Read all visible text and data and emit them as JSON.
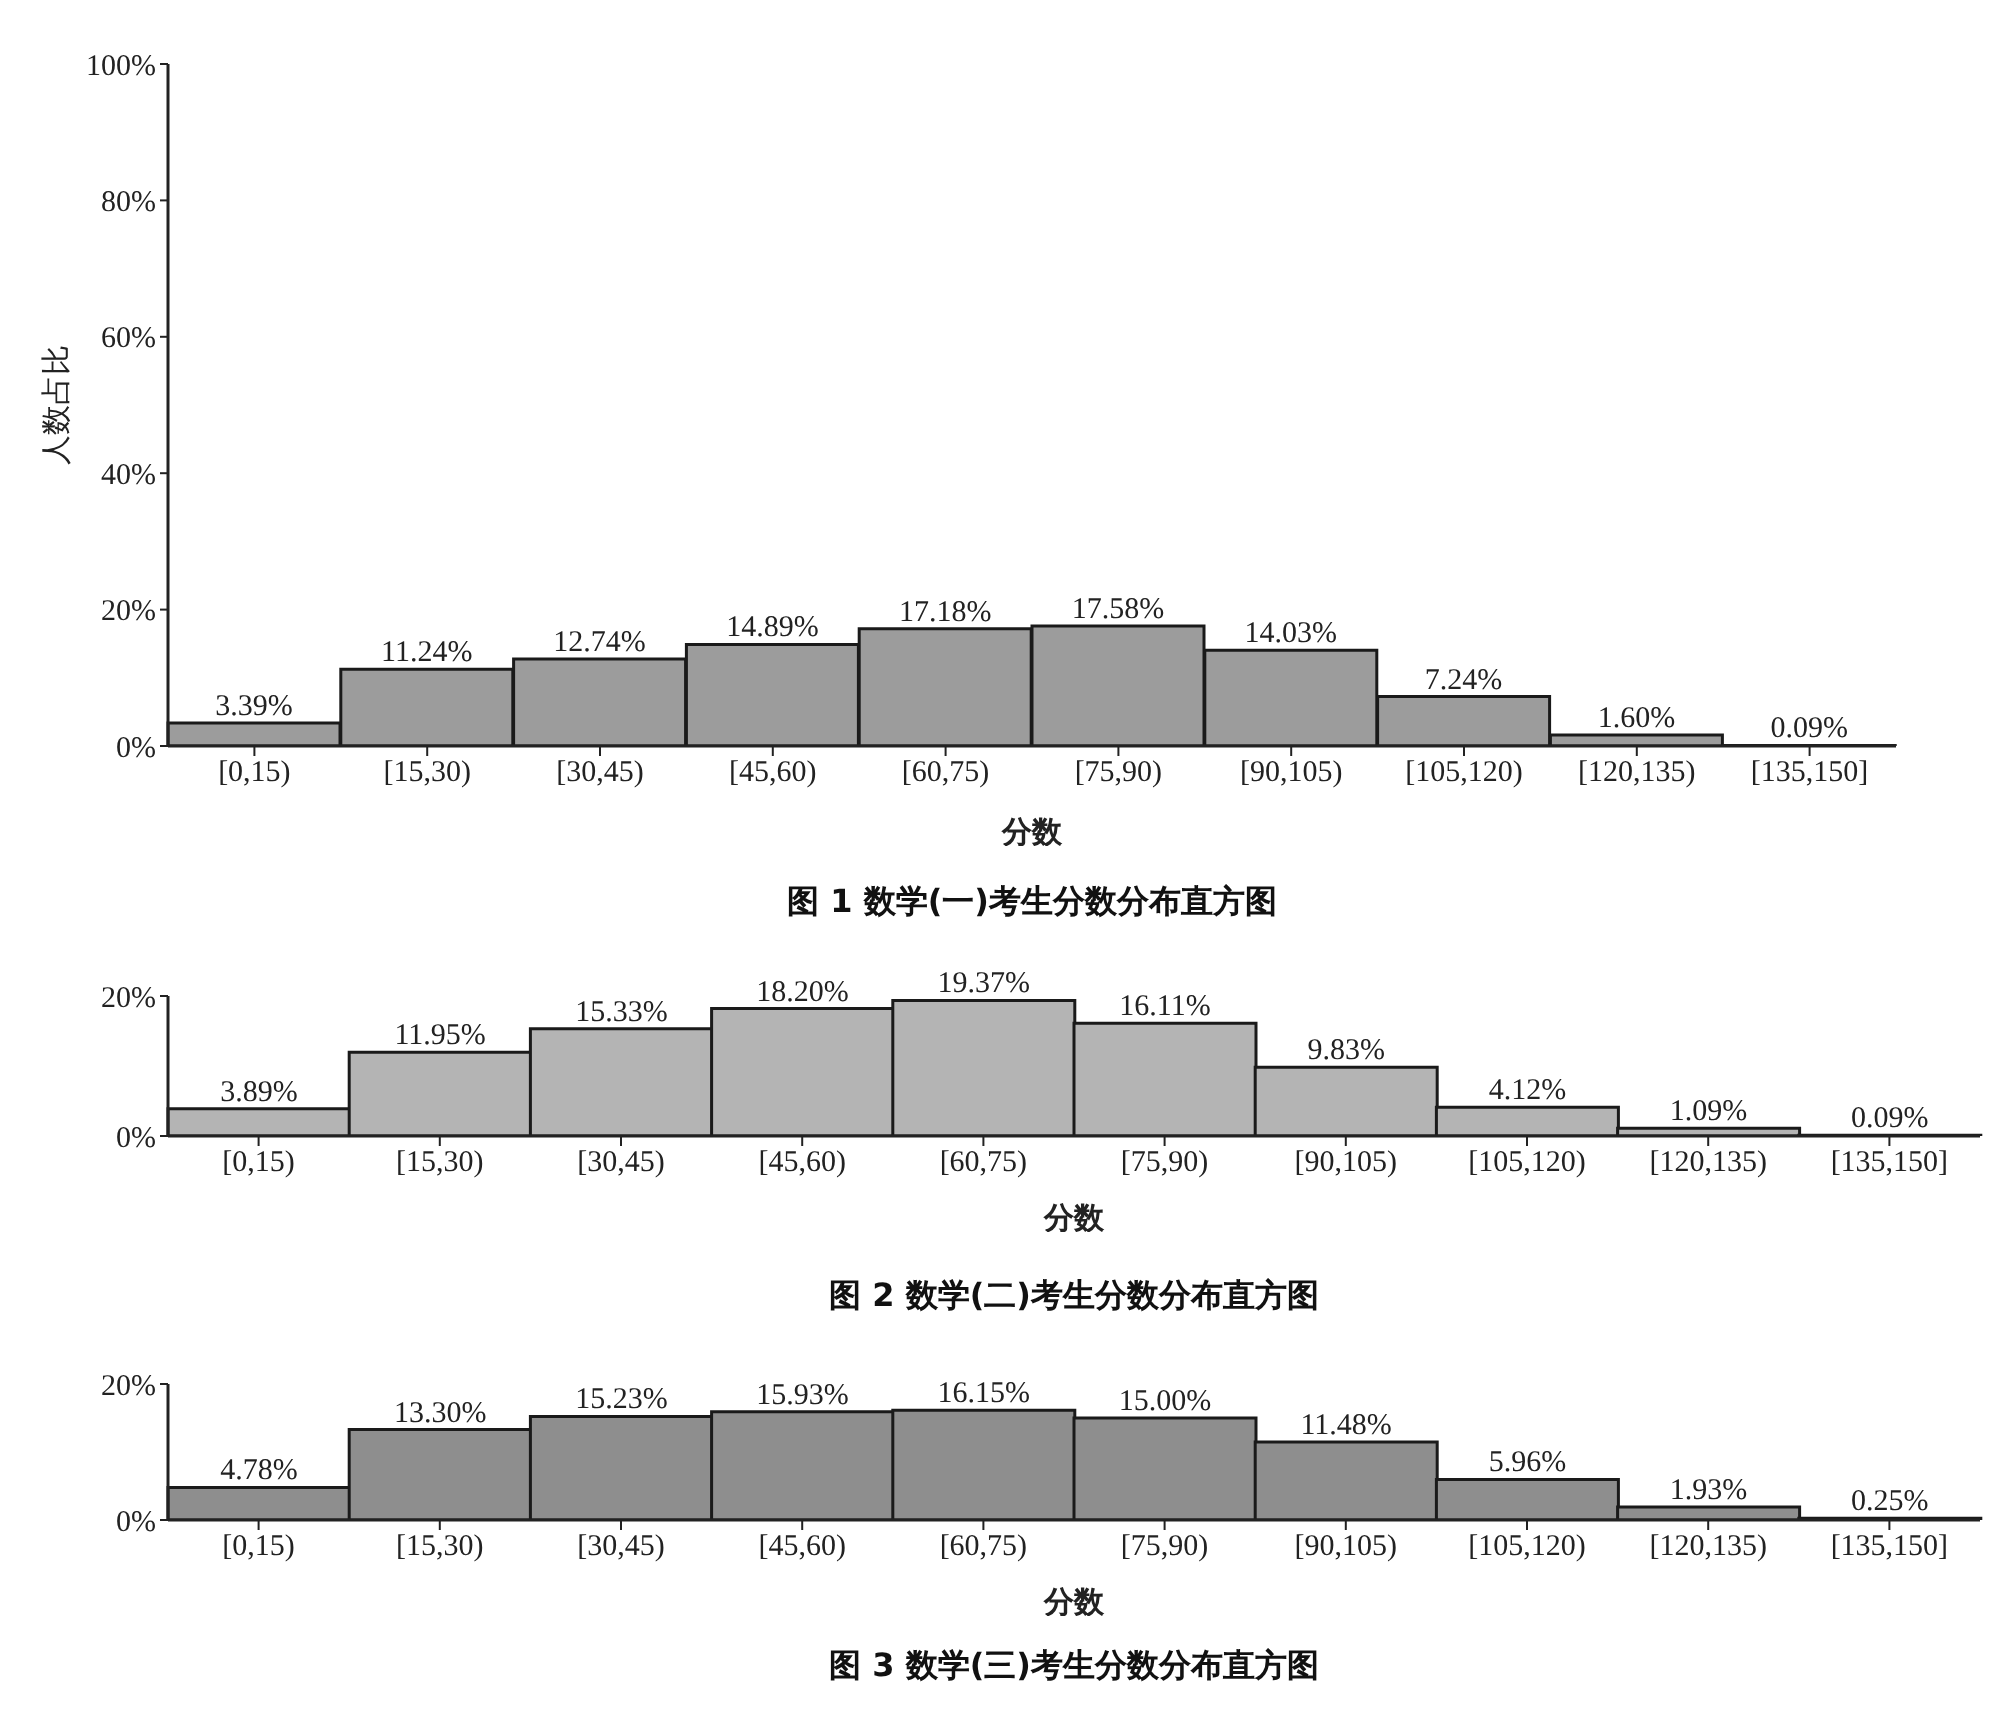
{
  "chart_data": [
    {
      "type": "bar",
      "title": "图 1 数学(一)考生分数分布直方图",
      "xlabel": "分数",
      "ylabel": "人数占比",
      "categories": [
        "[0,15)",
        "[15,30)",
        "[30,45)",
        "[45,60)",
        "[60,75)",
        "[75,90)",
        "[90,105)",
        "[105,120)",
        "[120,135)",
        "[135,150]"
      ],
      "values": [
        3.39,
        11.24,
        12.74,
        14.89,
        17.18,
        17.58,
        14.03,
        7.24,
        1.6,
        0.09
      ],
      "value_labels": [
        "3.39%",
        "11.24%",
        "12.74%",
        "14.89%",
        "17.18%",
        "17.58%",
        "14.03%",
        "7.24%",
        "1.60%",
        "0.09%"
      ],
      "color": "#9c9c9c",
      "ylim": [
        0,
        100
      ],
      "yticks": [
        {
          "value": 0,
          "label": "0%"
        },
        {
          "value": 20,
          "label": "20%"
        },
        {
          "value": 40,
          "label": "40%"
        },
        {
          "value": 60,
          "label": "60%"
        },
        {
          "value": 80,
          "label": "80%"
        },
        {
          "value": 100,
          "label": "100%"
        }
      ]
    },
    {
      "type": "bar",
      "title": "图 2 数学(二)考生分数分布直方图",
      "xlabel": "分数",
      "categories": [
        "[0,15)",
        "[15,30)",
        "[30,45)",
        "[45,60)",
        "[60,75)",
        "[75,90)",
        "[90,105)",
        "[105,120)",
        "[120,135)",
        "[135,150]"
      ],
      "values": [
        3.89,
        11.95,
        15.33,
        18.2,
        19.37,
        16.11,
        9.83,
        4.12,
        1.09,
        0.09
      ],
      "value_labels": [
        "3.89%",
        "11.95%",
        "15.33%",
        "18.20%",
        "19.37%",
        "16.11%",
        "9.83%",
        "4.12%",
        "1.09%",
        "0.09%"
      ],
      "color": "#b4b4b4",
      "ylim": [
        0,
        20
      ],
      "yticks": [
        {
          "value": 0,
          "label": "0%"
        },
        {
          "value": 20,
          "label": "20%"
        }
      ]
    },
    {
      "type": "bar",
      "title": "图 3 数学(三)考生分数分布直方图",
      "xlabel": "分数",
      "categories": [
        "[0,15)",
        "[15,30)",
        "[30,45)",
        "[45,60)",
        "[60,75)",
        "[75,90)",
        "[90,105)",
        "[105,120)",
        "[120,135)",
        "[135,150]"
      ],
      "values": [
        4.78,
        13.3,
        15.23,
        15.93,
        16.15,
        15.0,
        11.48,
        5.96,
        1.93,
        0.25
      ],
      "value_labels": [
        "4.78%",
        "13.30%",
        "15.23%",
        "15.93%",
        "16.15%",
        "15.00%",
        "11.48%",
        "5.96%",
        "1.93%",
        "0.25%"
      ],
      "color": "#8e8e8e",
      "ylim": [
        0,
        20
      ],
      "yticks": [
        {
          "value": 0,
          "label": "0%"
        },
        {
          "value": 20,
          "label": "20%"
        }
      ]
    }
  ]
}
